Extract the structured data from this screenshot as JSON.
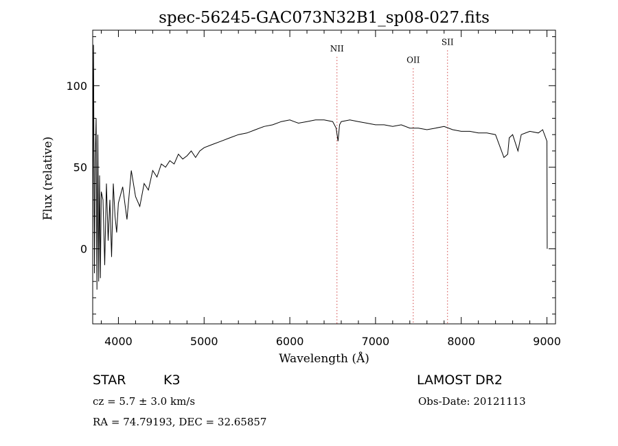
{
  "chart_data": {
    "type": "line",
    "title": "spec-56245-GAC073N32B1_sp08-027.fits",
    "xlabel": "Wavelength (Å)",
    "ylabel": "Flux (relative)",
    "xlim": [
      3700,
      9100
    ],
    "ylim": [
      -46,
      134
    ],
    "x_ticks": [
      4000,
      5000,
      6000,
      7000,
      8000,
      9000
    ],
    "y_ticks": [
      0,
      50,
      100
    ],
    "x_tick_labels": [
      "4000",
      "5000",
      "6000",
      "7000",
      "8000",
      "9000"
    ],
    "y_tick_labels": [
      "0",
      "50",
      "100"
    ],
    "spectrum": {
      "x": [
        3700,
        3710,
        3720,
        3730,
        3740,
        3750,
        3760,
        3770,
        3780,
        3790,
        3800,
        3820,
        3840,
        3860,
        3880,
        3900,
        3920,
        3940,
        3960,
        3980,
        4000,
        4050,
        4100,
        4150,
        4200,
        4250,
        4300,
        4350,
        4400,
        4450,
        4500,
        4550,
        4600,
        4650,
        4700,
        4750,
        4800,
        4850,
        4900,
        4950,
        5000,
        5100,
        5200,
        5300,
        5400,
        5500,
        5600,
        5700,
        5800,
        5900,
        6000,
        6050,
        6100,
        6200,
        6300,
        6400,
        6500,
        6540,
        6563,
        6580,
        6600,
        6700,
        6800,
        6900,
        7000,
        7100,
        7200,
        7300,
        7400,
        7500,
        7600,
        7700,
        7800,
        7900,
        8000,
        8100,
        8200,
        8300,
        8400,
        8498,
        8542,
        8560,
        8600,
        8662,
        8700,
        8800,
        8900,
        8950,
        9000,
        9003
      ],
      "flux": [
        5,
        125,
        -15,
        55,
        80,
        -25,
        70,
        -20,
        45,
        -18,
        35,
        30,
        -10,
        40,
        5,
        30,
        -5,
        40,
        20,
        10,
        28,
        38,
        18,
        48,
        32,
        26,
        40,
        36,
        48,
        44,
        52,
        50,
        54,
        52,
        58,
        55,
        57,
        60,
        56,
        60,
        62,
        64,
        66,
        68,
        70,
        71,
        73,
        75,
        76,
        78,
        79,
        78,
        77,
        78,
        79,
        79,
        78,
        74,
        66,
        76,
        78,
        79,
        78,
        77,
        76,
        76,
        75,
        76,
        74,
        74,
        73,
        74,
        75,
        73,
        72,
        72,
        71,
        71,
        70,
        56,
        58,
        68,
        70,
        60,
        70,
        72,
        71,
        73,
        66,
        0
      ]
    },
    "lines": [
      {
        "label": "NII",
        "x": 6550,
        "y": 121
      },
      {
        "label": "OII",
        "x": 7440,
        "y": 114
      },
      {
        "label": "SII",
        "x": 7840,
        "y": 125
      }
    ],
    "grid": false,
    "colors": {
      "spectrum": "#000000",
      "marker": "#d04040",
      "axes": "#000000"
    }
  },
  "info": {
    "class": "STAR",
    "subclass": "K3",
    "survey": "LAMOST DR2",
    "cz": "cz = 5.7 ± 3.0 km/s",
    "obs_date": "Obs-Date: 20121113",
    "coords": "RA =  74.79193, DEC =  32.65857"
  }
}
